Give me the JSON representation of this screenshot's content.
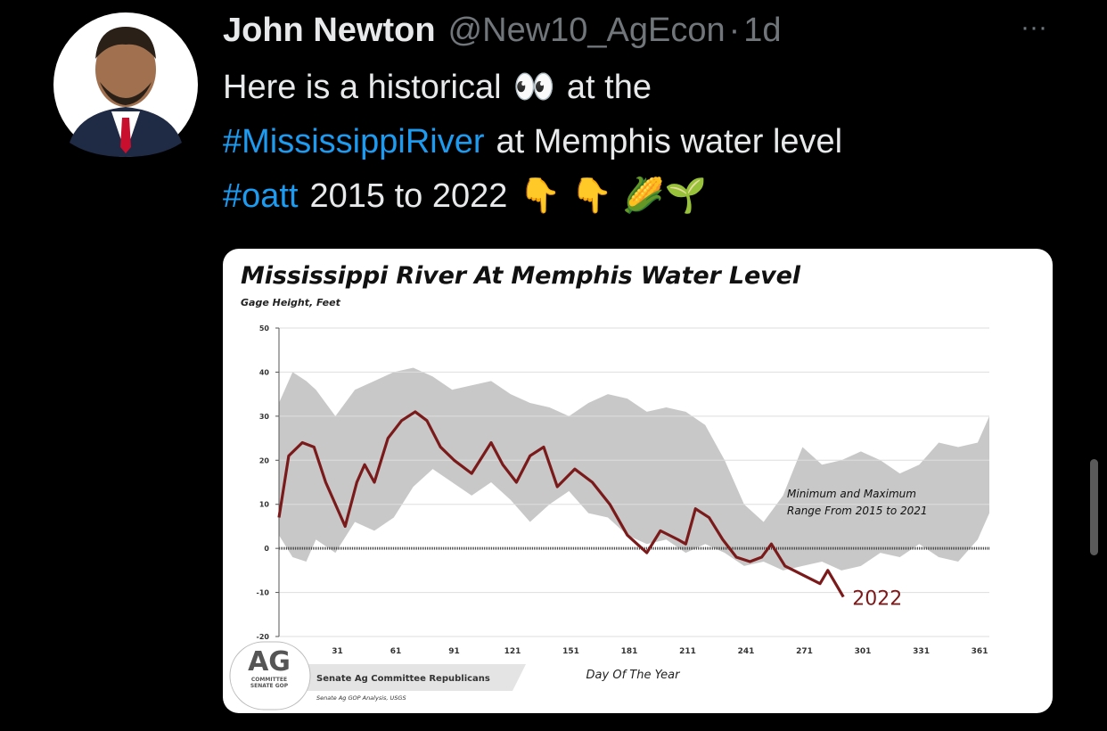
{
  "tweet": {
    "author": "John Newton",
    "handle": "@New10_AgEcon",
    "separator": "·",
    "time": "1d",
    "more": "···",
    "lines": [
      [
        "Here is a historical",
        "👀",
        "at the"
      ],
      [
        "#MississippiRiver",
        "at Memphis water level"
      ],
      [
        "#oatt",
        "2015 to 2022",
        "👇 👇 🌽🌱"
      ]
    ]
  },
  "chart_data": {
    "type": "line",
    "title": "Mississippi River At Memphis Water Level",
    "y_label": "Gage Height, Feet",
    "x_label": "Day Of The Year",
    "annotation": [
      "Minimum and Maximum",
      "Range From 2015 to 2021"
    ],
    "xlim": [
      1,
      366
    ],
    "xticks": [
      31,
      61,
      91,
      121,
      151,
      181,
      211,
      241,
      271,
      301,
      331,
      361
    ],
    "ylim": [
      -20,
      50
    ],
    "yticks": [
      50,
      40,
      30,
      20,
      10,
      0,
      -10,
      -20
    ],
    "grid": true,
    "series": [
      {
        "name": "2022",
        "color": "#7a1a1a",
        "x": [
          1,
          6,
          13,
          19,
          25,
          29,
          35,
          41,
          45,
          50,
          57,
          64,
          71,
          77,
          84,
          91,
          100,
          110,
          116,
          123,
          130,
          137,
          144,
          153,
          162,
          171,
          180,
          190,
          197,
          206,
          210,
          215,
          222,
          229,
          236,
          243,
          249,
          254,
          261,
          270,
          279,
          283,
          291
        ],
        "values": [
          7,
          21,
          24,
          23,
          15,
          11,
          5,
          15,
          19,
          15,
          25,
          29,
          31,
          29,
          23,
          20,
          17,
          24,
          19,
          15,
          21,
          23,
          14,
          18,
          15,
          10,
          3,
          -1,
          4,
          2,
          1,
          9,
          7,
          2,
          -2,
          -3,
          -2,
          1,
          -4,
          -6,
          -8,
          -5,
          -11
        ]
      }
    ],
    "range": {
      "color": "#c8c8c8",
      "x": [
        1,
        8,
        15,
        20,
        30,
        40,
        50,
        60,
        70,
        80,
        90,
        100,
        110,
        120,
        130,
        140,
        150,
        160,
        170,
        180,
        190,
        200,
        210,
        220,
        230,
        240,
        250,
        260,
        270,
        280,
        290,
        300,
        310,
        320,
        330,
        340,
        350,
        360,
        366
      ],
      "upper": [
        33,
        40,
        38,
        36,
        30,
        36,
        38,
        40,
        41,
        39,
        36,
        37,
        38,
        35,
        33,
        32,
        30,
        33,
        35,
        34,
        31,
        32,
        31,
        28,
        20,
        10,
        6,
        12,
        23,
        19,
        20,
        22,
        20,
        17,
        19,
        24,
        23,
        24,
        30
      ],
      "lower": [
        3,
        -2,
        -3,
        2,
        -1,
        6,
        4,
        7,
        14,
        18,
        15,
        12,
        15,
        11,
        6,
        10,
        13,
        8,
        7,
        3,
        1,
        2,
        -1,
        1,
        -1,
        -4,
        -3,
        -5,
        -4,
        -3,
        -5,
        -4,
        -1,
        -2,
        1,
        -2,
        -3,
        2,
        8
      ]
    },
    "logo": {
      "mark": "AG",
      "sub": [
        "COMMITTEE",
        "SENATE GOP"
      ]
    },
    "footer": "Senate Ag Committee Republicans",
    "source": "Senate Ag GOP Analysis, USGS"
  }
}
